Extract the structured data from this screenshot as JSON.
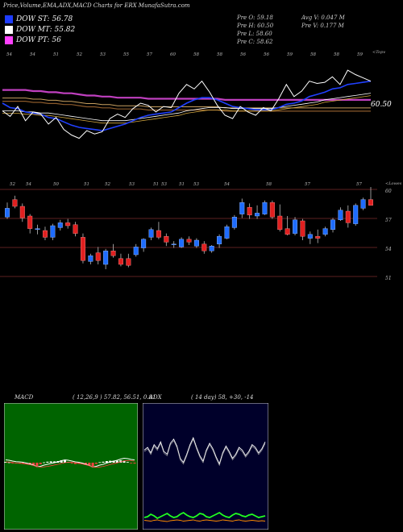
{
  "header": {
    "title": "Price,Volume,EMA,ADX,MACD Charts for ERX  MunafaSutra.com"
  },
  "legend": [
    {
      "label": "DOW ST: 56.78",
      "color": "#1e3cff"
    },
    {
      "label": "DOW MT: 55.82",
      "color": "#ffffff"
    },
    {
      "label": "DOW PT: 56",
      "color": "#ff40ff"
    }
  ],
  "quote": {
    "pre_o": "Pre   O: 59.18",
    "pre_h": "Pre   H: 60.50",
    "pre_l": "Pre   L: 58.60",
    "pre_c": "Pre   C: 58.62",
    "avg_v": "Avg V: 0.047 M",
    "pre_v": "Pre   V: 0.177 M"
  },
  "panels": {
    "price_top_right": "<Topv",
    "candle_top_right": "<Lowes",
    "macd_label": "MACD",
    "macd_params": "( 12,26,9 ) 57.82,  56.51,  0.81",
    "adx_label": "ADX",
    "adx_params": "( 14  day) 58,  +30,  -14"
  },
  "chart_data": [
    {
      "type": "line",
      "name": "price-ema",
      "x_ticks": [
        "54",
        "54",
        "51",
        "52",
        "53",
        "55",
        "57",
        "60",
        "58",
        "58",
        "56",
        "56",
        "59",
        "58",
        "58",
        "59"
      ],
      "last_label": "60.50",
      "close": [
        55.9,
        55.4,
        56.3,
        55.0,
        55.8,
        55.6,
        54.7,
        55.3,
        54.2,
        53.7,
        53.4,
        54.1,
        53.8,
        54.0,
        55.2,
        55.6,
        55.3,
        56.1,
        56.6,
        56.4,
        55.8,
        56.3,
        56.2,
        57.5,
        58.3,
        57.9,
        58.6,
        57.6,
        56.4,
        55.5,
        55.2,
        56.3,
        55.8,
        55.5,
        56.2,
        55.9,
        57.0,
        58.3,
        57.2,
        57.7,
        58.6,
        58.4,
        58.5,
        59.0,
        58.3,
        59.6,
        59.2,
        58.9,
        58.6
      ],
      "ema_short": [
        56.6,
        56.2,
        56.1,
        55.8,
        55.7,
        55.6,
        55.3,
        55.2,
        54.9,
        54.6,
        54.4,
        54.3,
        54.2,
        54.1,
        54.3,
        54.5,
        54.7,
        55.0,
        55.3,
        55.5,
        55.6,
        55.7,
        55.8,
        56.2,
        56.6,
        56.9,
        57.1,
        57.1,
        56.9,
        56.6,
        56.3,
        56.2,
        56.1,
        56.0,
        56.0,
        56.0,
        56.2,
        56.5,
        56.6,
        56.8,
        57.2,
        57.4,
        57.6,
        57.9,
        58.0,
        58.3,
        58.4,
        58.5,
        58.6
      ],
      "ema_mid": [
        56.2,
        56.2,
        56.2,
        56.1,
        56.1,
        56.0,
        56.0,
        55.9,
        55.8,
        55.7,
        55.6,
        55.5,
        55.4,
        55.3,
        55.3,
        55.3,
        55.3,
        55.4,
        55.5,
        55.6,
        55.7,
        55.8,
        55.9,
        56.0,
        56.2,
        56.3,
        56.4,
        56.5,
        56.5,
        56.5,
        56.4,
        56.4,
        56.4,
        56.4,
        56.4,
        56.4,
        56.5,
        56.6,
        56.7,
        56.8,
        56.9,
        57.0,
        57.2,
        57.3,
        57.4,
        57.5,
        57.6,
        57.7,
        57.8
      ],
      "ema_long": [
        57.8,
        57.8,
        57.8,
        57.8,
        57.7,
        57.7,
        57.6,
        57.6,
        57.5,
        57.5,
        57.4,
        57.3,
        57.3,
        57.2,
        57.2,
        57.1,
        57.1,
        57.1,
        57.1,
        57.0,
        57.0,
        57.0,
        57.0,
        57.0,
        57.0,
        57.0,
        57.0,
        57.0,
        57.0,
        56.9,
        56.9,
        56.9,
        56.9,
        56.9,
        56.9,
        56.9,
        56.9,
        56.9,
        56.9,
        56.9,
        56.9,
        56.9,
        56.9,
        56.9,
        56.9,
        56.9,
        56.9,
        56.9,
        56.9
      ],
      "ylim": [
        50,
        61
      ]
    },
    {
      "type": "candlestick",
      "name": "daily-candles",
      "x_ticks": [
        "52",
        "54",
        "50",
        "51",
        "52",
        "53",
        "51",
        "53",
        "51",
        "53",
        "54",
        "58",
        "57",
        "57"
      ],
      "y_ticks": [
        "60",
        "57",
        "54",
        "51"
      ],
      "ohlc": [
        [
          57.4,
          58.9,
          57.2,
          58.3
        ],
        [
          59.2,
          59.6,
          58.3,
          58.5
        ],
        [
          58.5,
          58.8,
          56.9,
          57.3
        ],
        [
          57.5,
          57.7,
          55.7,
          56.2
        ],
        [
          56.1,
          56.6,
          55.6,
          56.2
        ],
        [
          56.0,
          56.4,
          55.0,
          55.3
        ],
        [
          55.3,
          56.7,
          55.0,
          56.5
        ],
        [
          56.3,
          57.1,
          56.0,
          56.8
        ],
        [
          56.8,
          57.2,
          56.2,
          56.5
        ],
        [
          56.6,
          56.9,
          55.4,
          55.7
        ],
        [
          55.3,
          55.7,
          52.6,
          52.9
        ],
        [
          52.8,
          53.6,
          52.5,
          53.4
        ],
        [
          53.7,
          54.3,
          52.5,
          52.9
        ],
        [
          52.5,
          54.1,
          52.0,
          53.9
        ],
        [
          53.9,
          54.6,
          53.2,
          53.4
        ],
        [
          53.1,
          53.6,
          52.3,
          52.5
        ],
        [
          53.1,
          53.6,
          52.2,
          52.4
        ],
        [
          53.5,
          54.6,
          53.3,
          54.3
        ],
        [
          54.2,
          55.2,
          53.8,
          55.1
        ],
        [
          55.3,
          56.3,
          55.0,
          56.1
        ],
        [
          56.0,
          56.9,
          55.1,
          55.3
        ],
        [
          55.4,
          55.7,
          54.4,
          54.8
        ],
        [
          54.6,
          54.9,
          54.2,
          54.6
        ],
        [
          54.3,
          55.3,
          54.2,
          55.1
        ],
        [
          55.1,
          55.4,
          54.5,
          54.8
        ],
        [
          54.4,
          55.2,
          54.2,
          55.0
        ],
        [
          54.6,
          54.9,
          53.6,
          53.9
        ],
        [
          53.9,
          54.5,
          53.7,
          54.4
        ],
        [
          54.6,
          55.6,
          54.2,
          55.4
        ],
        [
          55.2,
          56.6,
          55.1,
          56.4
        ],
        [
          56.3,
          57.6,
          56.1,
          57.4
        ],
        [
          57.7,
          59.3,
          57.3,
          58.9
        ],
        [
          58.4,
          58.8,
          57.2,
          57.6
        ],
        [
          57.5,
          58.6,
          57.2,
          57.8
        ],
        [
          57.7,
          59.1,
          57.6,
          58.9
        ],
        [
          58.9,
          59.1,
          57.2,
          57.4
        ],
        [
          57.5,
          58.7,
          55.9,
          56.1
        ],
        [
          56.2,
          57.5,
          55.5,
          55.6
        ],
        [
          55.7,
          57.4,
          55.5,
          57.1
        ],
        [
          57.0,
          57.2,
          55.0,
          55.4
        ],
        [
          55.2,
          55.9,
          54.6,
          55.6
        ],
        [
          55.4,
          56.1,
          54.7,
          55.2
        ],
        [
          55.6,
          56.4,
          55.4,
          56.2
        ],
        [
          56.1,
          57.3,
          55.8,
          57.1
        ],
        [
          57.1,
          58.4,
          57.0,
          58.1
        ],
        [
          58.0,
          58.6,
          56.3,
          56.8
        ],
        [
          56.7,
          58.8,
          56.5,
          58.6
        ],
        [
          58.3,
          59.4,
          58.1,
          59.2
        ],
        [
          59.2,
          60.5,
          58.6,
          58.6
        ]
      ],
      "ylim": [
        50,
        61
      ]
    },
    {
      "type": "line",
      "name": "macd",
      "series": [
        {
          "values": [
            0.35,
            0.3,
            0.2,
            0.12,
            0.1,
            0.05,
            -0.05,
            -0.15,
            -0.3,
            -0.5,
            -0.45,
            -0.3,
            -0.2,
            -0.1,
            0.0,
            0.1,
            0.25,
            0.35,
            0.3,
            0.2,
            0.1,
            0.05,
            -0.05,
            -0.2,
            -0.35,
            -0.55,
            -0.45,
            -0.3,
            -0.2,
            -0.05,
            0.1,
            0.2,
            0.3,
            0.45,
            0.55,
            0.5,
            0.4,
            0.35
          ]
        },
        {
          "values": [
            0.3,
            0.28,
            0.22,
            0.16,
            0.12,
            0.08,
            0.02,
            -0.05,
            -0.15,
            -0.3,
            -0.35,
            -0.32,
            -0.26,
            -0.18,
            -0.08,
            0.0,
            0.1,
            0.2,
            0.25,
            0.24,
            0.18,
            0.12,
            0.04,
            -0.06,
            -0.18,
            -0.33,
            -0.38,
            -0.33,
            -0.26,
            -0.15,
            -0.02,
            0.08,
            0.18,
            0.3,
            0.42,
            0.46,
            0.44,
            0.4
          ]
        }
      ],
      "ylim": [
        -3,
        3
      ]
    },
    {
      "type": "line",
      "name": "adx",
      "series": [
        {
          "values": [
            58,
            60,
            56,
            62,
            59,
            64,
            57,
            55,
            63,
            66,
            61,
            52,
            49,
            55,
            62,
            67,
            60,
            54,
            50,
            58,
            63,
            59,
            53,
            48,
            56,
            61,
            57,
            52,
            55,
            60,
            58,
            54,
            57,
            62,
            60,
            56,
            59,
            64
          ]
        },
        {
          "values": [
            8,
            9,
            12,
            10,
            7,
            9,
            11,
            13,
            10,
            8,
            9,
            12,
            14,
            11,
            9,
            8,
            10,
            13,
            12,
            9,
            8,
            10,
            12,
            14,
            11,
            9,
            8,
            11,
            13,
            12,
            10,
            9,
            11,
            12,
            10,
            8,
            9,
            10
          ]
        },
        {
          "values": [
            9,
            8,
            7,
            9,
            10,
            8,
            7,
            6,
            8,
            9,
            10,
            9,
            7,
            8,
            9,
            10,
            8,
            7,
            9,
            10,
            9,
            8,
            7,
            8,
            10,
            9,
            8,
            7,
            9,
            10,
            8,
            7,
            8,
            9,
            8,
            7,
            8,
            7
          ]
        }
      ],
      "ylim": [
        0,
        100
      ]
    }
  ]
}
